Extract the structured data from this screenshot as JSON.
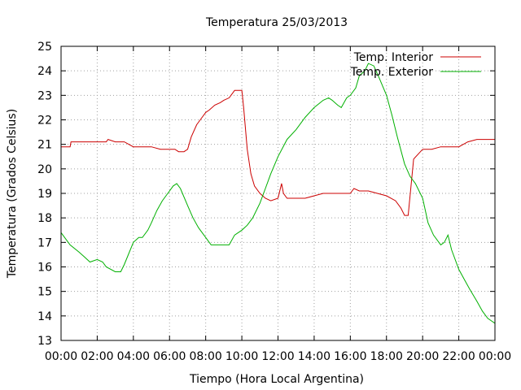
{
  "chart_data": {
    "type": "line",
    "title": "Temperatura 25/03/2013",
    "xlabel": "Tiempo (Hora Local Argentina)",
    "ylabel": "Temperatura (Grados Celsius)",
    "xlim": [
      0,
      24
    ],
    "ylim": [
      13,
      25
    ],
    "xticks": [
      "00:00",
      "02:00",
      "04:00",
      "06:00",
      "08:00",
      "10:00",
      "12:00",
      "14:00",
      "16:00",
      "18:00",
      "20:00",
      "22:00",
      "00:00"
    ],
    "yticks": [
      13,
      14,
      15,
      16,
      17,
      18,
      19,
      20,
      21,
      22,
      23,
      24,
      25
    ],
    "grid": true,
    "legend_position": "top-right",
    "series": [
      {
        "name": "Temp. Interior",
        "color": "#cc0000",
        "x": [
          0,
          0.5,
          0.55,
          1,
          1.5,
          2,
          2.5,
          2.6,
          3,
          3.2,
          3.5,
          4,
          4.5,
          5,
          5.5,
          6,
          6.3,
          6.5,
          6.8,
          7,
          7.2,
          7.5,
          7.8,
          8,
          8.2,
          8.5,
          8.8,
          9,
          9.3,
          9.6,
          9.8,
          10,
          10.1,
          10.3,
          10.5,
          10.7,
          11,
          11.3,
          11.6,
          12,
          12.2,
          12.3,
          12.5,
          12.8,
          13,
          13.5,
          14,
          14.5,
          15,
          15.5,
          16,
          16.2,
          16.5,
          17,
          17.5,
          18,
          18.5,
          18.8,
          19,
          19.2,
          19.5,
          20,
          20.5,
          21,
          21.5,
          22,
          22.5,
          23,
          23.5,
          24
        ],
        "y": [
          20.9,
          20.9,
          21.1,
          21.1,
          21.1,
          21.1,
          21.1,
          21.2,
          21.1,
          21.1,
          21.1,
          20.9,
          20.9,
          20.9,
          20.8,
          20.8,
          20.8,
          20.7,
          20.7,
          20.8,
          21.3,
          21.8,
          22.1,
          22.3,
          22.4,
          22.6,
          22.7,
          22.8,
          22.9,
          23.2,
          23.2,
          23.2,
          22.5,
          20.8,
          19.8,
          19.3,
          19.0,
          18.8,
          18.7,
          18.8,
          19.4,
          19.0,
          18.8,
          18.8,
          18.8,
          18.8,
          18.9,
          19.0,
          19.0,
          19.0,
          19.0,
          19.2,
          19.1,
          19.1,
          19.0,
          18.9,
          18.7,
          18.4,
          18.1,
          18.1,
          20.4,
          20.8,
          20.8,
          20.9,
          20.9,
          20.9,
          21.1,
          21.2,
          21.2,
          21.2
        ]
      },
      {
        "name": "Temp. Exterior",
        "color": "#00b000",
        "x": [
          0,
          0.5,
          1,
          1.3,
          1.6,
          2,
          2.3,
          2.5,
          3,
          3.3,
          3.5,
          4,
          4.3,
          4.5,
          4.8,
          5,
          5.3,
          5.6,
          6,
          6.2,
          6.4,
          6.6,
          7,
          7.3,
          7.6,
          8,
          8.3,
          8.6,
          9,
          9.3,
          9.6,
          10,
          10.3,
          10.6,
          11,
          11.3,
          11.6,
          12,
          12.5,
          13,
          13.5,
          14,
          14.5,
          14.8,
          15,
          15.3,
          15.5,
          15.8,
          16,
          16.3,
          16.5,
          16.8,
          17,
          17.3,
          17.6,
          18,
          18.3,
          18.6,
          19,
          19.3,
          19.6,
          20,
          20.3,
          20.6,
          21,
          21.2,
          21.4,
          21.6,
          22,
          22.3,
          22.6,
          23,
          23.3,
          23.6,
          23.8,
          24
        ],
        "y": [
          17.4,
          16.9,
          16.6,
          16.4,
          16.2,
          16.3,
          16.2,
          16.0,
          15.8,
          15.8,
          16.1,
          17.0,
          17.2,
          17.2,
          17.5,
          17.8,
          18.3,
          18.7,
          19.1,
          19.3,
          19.4,
          19.2,
          18.5,
          18.0,
          17.6,
          17.2,
          16.9,
          16.9,
          16.9,
          16.9,
          17.3,
          17.5,
          17.7,
          18.0,
          18.6,
          19.2,
          19.8,
          20.5,
          21.2,
          21.6,
          22.1,
          22.5,
          22.8,
          22.9,
          22.8,
          22.6,
          22.5,
          22.9,
          23.0,
          23.3,
          23.8,
          24.0,
          24.3,
          24.2,
          23.7,
          23.0,
          22.2,
          21.3,
          20.2,
          19.7,
          19.4,
          18.8,
          17.8,
          17.3,
          16.9,
          17.0,
          17.3,
          16.7,
          15.9,
          15.5,
          15.1,
          14.6,
          14.2,
          13.9,
          13.8,
          13.7
        ]
      }
    ]
  }
}
